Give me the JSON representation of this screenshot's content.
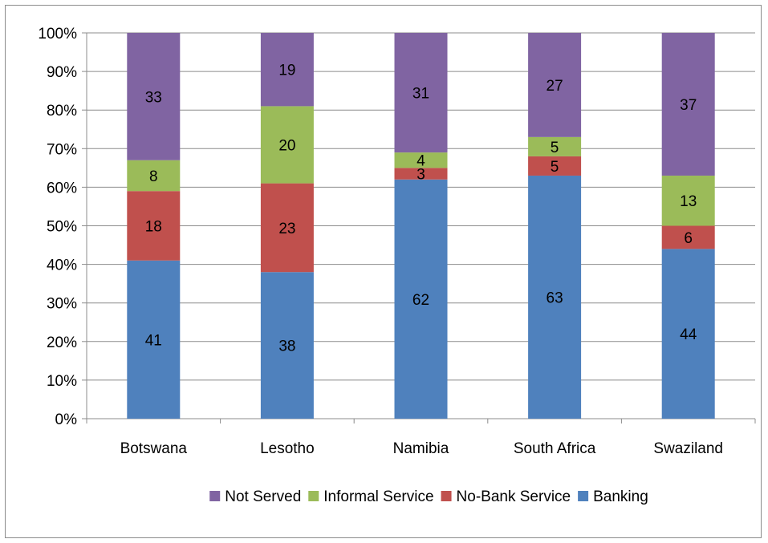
{
  "chart_data": {
    "type": "bar",
    "stacked": "percent",
    "categories": [
      "Botswana",
      "Lesotho",
      "Namibia",
      "South Africa",
      "Swaziland"
    ],
    "series": [
      {
        "name": "Banking",
        "color": "#4f81bd",
        "values": [
          41,
          38,
          62,
          63,
          44
        ]
      },
      {
        "name": "No-Bank Service",
        "color": "#c0504d",
        "values": [
          18,
          23,
          3,
          5,
          6
        ]
      },
      {
        "name": "Informal Service",
        "color": "#9bbb59",
        "values": [
          8,
          20,
          4,
          5,
          13
        ]
      },
      {
        "name": "Not Served",
        "color": "#8064a2",
        "values": [
          33,
          19,
          31,
          27,
          37
        ]
      }
    ],
    "y_ticks": [
      "0%",
      "10%",
      "20%",
      "30%",
      "40%",
      "50%",
      "60%",
      "70%",
      "80%",
      "90%",
      "100%"
    ],
    "ylim": [
      0,
      100
    ],
    "grid": true,
    "legend_position": "bottom",
    "legend_order": [
      "Not Served",
      "Informal Service",
      "No-Bank Service",
      "Banking"
    ],
    "title": "",
    "xlabel": "",
    "ylabel": ""
  }
}
